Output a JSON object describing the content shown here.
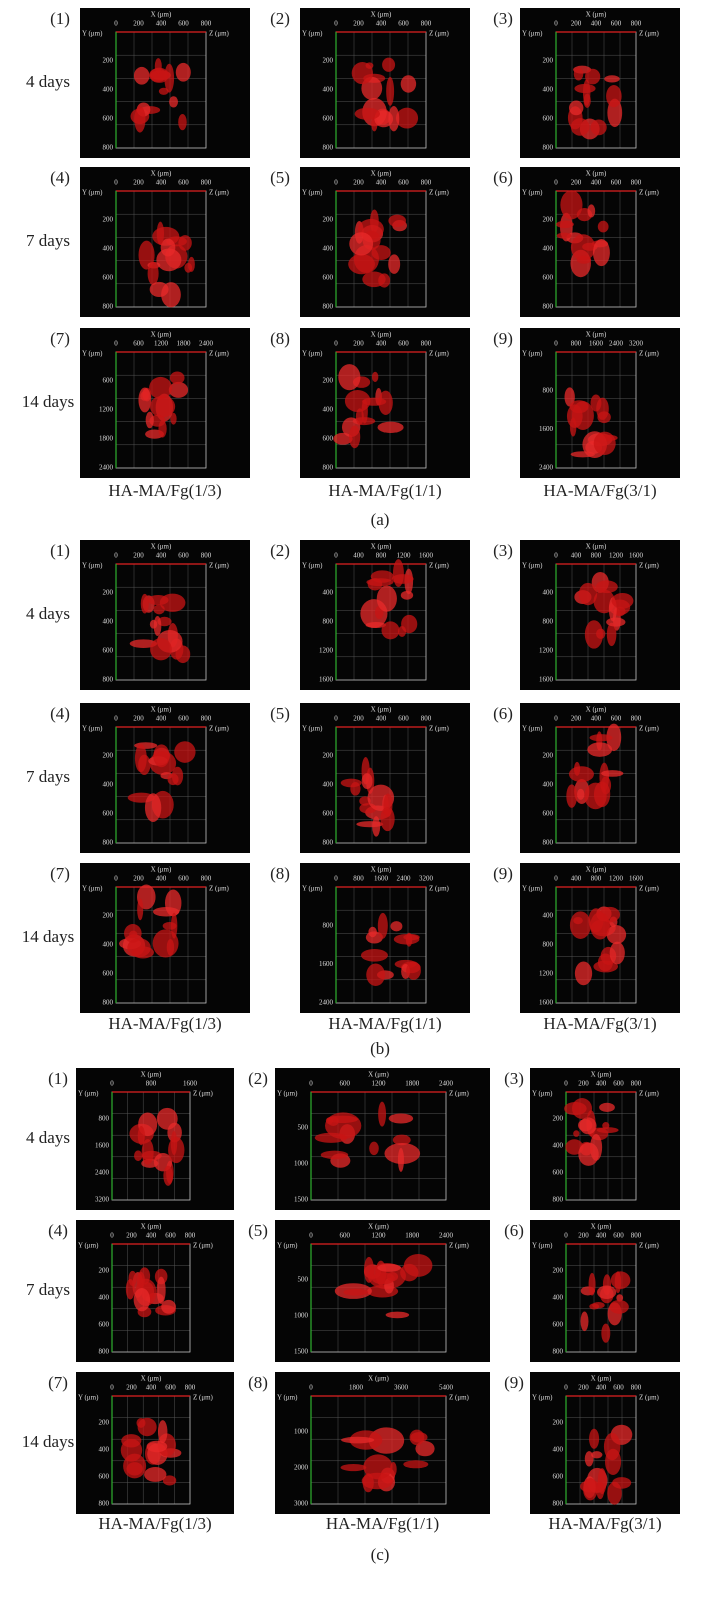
{
  "panels": [
    {
      "label": "(a)",
      "row_labels": [
        "4 days",
        "7 days",
        "14 days"
      ],
      "column_labels": [
        "HA-MA/Fg(1/3)",
        "HA-MA/Fg(1/1)",
        "HA-MA/Fg(3/1)"
      ],
      "images": [
        {
          "number": "(1)",
          "x_axis": "X (μm)",
          "y_axis": "Y (μm)",
          "z_axis": "Z (μm)",
          "xticks": [
            0,
            200,
            400,
            600,
            800
          ],
          "yticks": [
            200,
            400,
            600,
            800
          ]
        },
        {
          "number": "(2)",
          "x_axis": "X (μm)",
          "y_axis": "Y (μm)",
          "z_axis": "Z (μm)",
          "xticks": [
            0,
            200,
            400,
            600,
            800
          ],
          "yticks": [
            200,
            400,
            600,
            800
          ]
        },
        {
          "number": "(3)",
          "x_axis": "X (μm)",
          "y_axis": "Y (μm)",
          "z_axis": "Z (μm)",
          "xticks": [
            0,
            200,
            400,
            600,
            800
          ],
          "yticks": [
            200,
            400,
            600,
            800
          ]
        },
        {
          "number": "(4)",
          "x_axis": "X (μm)",
          "y_axis": "Y (μm)",
          "z_axis": "Z (μm)",
          "xticks": [
            0,
            200,
            400,
            600,
            800
          ],
          "yticks": [
            200,
            400,
            600,
            800
          ]
        },
        {
          "number": "(5)",
          "x_axis": "X (μm)",
          "y_axis": "Y (μm)",
          "z_axis": "Z (μm)",
          "xticks": [
            0,
            200,
            400,
            600,
            800
          ],
          "yticks": [
            200,
            400,
            600,
            800
          ]
        },
        {
          "number": "(6)",
          "x_axis": "X (μm)",
          "y_axis": "Y (μm)",
          "z_axis": "Z (μm)",
          "xticks": [
            0,
            200,
            400,
            600,
            800
          ],
          "yticks": [
            200,
            400,
            600,
            800
          ]
        },
        {
          "number": "(7)",
          "x_axis": "X (μm)",
          "y_axis": "Y (μm)",
          "z_axis": "Z (μm)",
          "xticks": [
            0,
            600,
            1200,
            1800,
            2400
          ],
          "yticks": [
            600,
            1200,
            1800,
            2400
          ]
        },
        {
          "number": "(8)",
          "x_axis": "X (μm)",
          "y_axis": "Y (μm)",
          "z_axis": "Z (μm)",
          "xticks": [
            0,
            200,
            400,
            600,
            800
          ],
          "yticks": [
            200,
            400,
            600,
            800
          ]
        },
        {
          "number": "(9)",
          "x_axis": "X (μm)",
          "y_axis": "Y (μm)",
          "z_axis": "Z (μm)",
          "xticks": [
            0,
            800,
            1600,
            2400,
            3200
          ],
          "yticks": [
            800,
            1600,
            2400
          ]
        }
      ]
    },
    {
      "label": "(b)",
      "row_labels": [
        "4 days",
        "7 days",
        "14 days"
      ],
      "column_labels": [
        "HA-MA/Fg(1/3)",
        "HA-MA/Fg(1/1)",
        "HA-MA/Fg(3/1)"
      ],
      "images": [
        {
          "number": "(1)",
          "x_axis": "X (μm)",
          "y_axis": "Y (μm)",
          "z_axis": "Z (μm)",
          "xticks": [
            0,
            200,
            400,
            600,
            800
          ],
          "yticks": [
            200,
            400,
            600,
            800
          ]
        },
        {
          "number": "(2)",
          "x_axis": "X (μm)",
          "y_axis": "Y (μm)",
          "z_axis": "Z (μm)",
          "xticks": [
            0,
            400,
            800,
            1200,
            1600
          ],
          "yticks": [
            400,
            800,
            1200,
            1600
          ]
        },
        {
          "number": "(3)",
          "x_axis": "X (μm)",
          "y_axis": "Y (μm)",
          "z_axis": "Z (μm)",
          "xticks": [
            0,
            400,
            800,
            1200,
            1600
          ],
          "yticks": [
            400,
            800,
            1200,
            1600
          ]
        },
        {
          "number": "(4)",
          "x_axis": "X (μm)",
          "y_axis": "Y (μm)",
          "z_axis": "Z (μm)",
          "xticks": [
            0,
            200,
            400,
            600,
            800
          ],
          "yticks": [
            200,
            400,
            600,
            800
          ]
        },
        {
          "number": "(5)",
          "x_axis": "X (μm)",
          "y_axis": "Y (μm)",
          "z_axis": "Z (μm)",
          "xticks": [
            0,
            200,
            400,
            600,
            800
          ],
          "yticks": [
            200,
            400,
            600,
            800
          ]
        },
        {
          "number": "(6)",
          "x_axis": "X (μm)",
          "y_axis": "Y (μm)",
          "z_axis": "Z (μm)",
          "xticks": [
            0,
            200,
            400,
            600,
            800
          ],
          "yticks": [
            200,
            400,
            600,
            800
          ]
        },
        {
          "number": "(7)",
          "x_axis": "X (μm)",
          "y_axis": "Y (μm)",
          "z_axis": "Z (μm)",
          "xticks": [
            0,
            200,
            400,
            600,
            800
          ],
          "yticks": [
            200,
            400,
            600,
            800
          ]
        },
        {
          "number": "(8)",
          "x_axis": "X (μm)",
          "y_axis": "Y (μm)",
          "z_axis": "Z (μm)",
          "xticks": [
            0,
            800,
            1600,
            2400,
            3200
          ],
          "yticks": [
            800,
            1600,
            2400
          ]
        },
        {
          "number": "(9)",
          "x_axis": "X (μm)",
          "y_axis": "Y (μm)",
          "z_axis": "Z (μm)",
          "xticks": [
            0,
            400,
            800,
            1200,
            1600
          ],
          "yticks": [
            400,
            800,
            1200,
            1600
          ]
        }
      ]
    },
    {
      "label": "(c)",
      "row_labels": [
        "4 days",
        "7 days",
        "14 days"
      ],
      "column_labels": [
        "HA-MA/Fg(1/3)",
        "HA-MA/Fg(1/1)",
        "HA-MA/Fg(3/1)"
      ],
      "images": [
        {
          "number": "(1)",
          "x_axis": "X (μm)",
          "y_axis": "Y (μm)",
          "z_axis": "Z (μm)",
          "xticks": [
            0,
            800,
            1600
          ],
          "yticks": [
            800,
            1600,
            2400,
            3200
          ]
        },
        {
          "number": "(2)",
          "x_axis": "X (μm)",
          "y_axis": "Y (μm)",
          "z_axis": "Z (μm)",
          "xticks": [
            0,
            600,
            1200,
            1800,
            2400
          ],
          "yticks": [
            500,
            1000,
            1500
          ]
        },
        {
          "number": "(3)",
          "x_axis": "X (μm)",
          "y_axis": "Y (μm)",
          "z_axis": "Z (μm)",
          "xticks": [
            0,
            200,
            400,
            600,
            800
          ],
          "yticks": [
            200,
            400,
            600,
            800
          ]
        },
        {
          "number": "(4)",
          "x_axis": "X (μm)",
          "y_axis": "Y (μm)",
          "z_axis": "Z (μm)",
          "xticks": [
            0,
            200,
            400,
            600,
            800
          ],
          "yticks": [
            200,
            400,
            600,
            800
          ]
        },
        {
          "number": "(5)",
          "x_axis": "X (μm)",
          "y_axis": "Y (μm)",
          "z_axis": "Z (μm)",
          "xticks": [
            0,
            600,
            1200,
            1800,
            2400
          ],
          "yticks": [
            500,
            1000,
            1500
          ]
        },
        {
          "number": "(6)",
          "x_axis": "X (μm)",
          "y_axis": "Y (μm)",
          "z_axis": "Z (μm)",
          "xticks": [
            0,
            200,
            400,
            600,
            800
          ],
          "yticks": [
            200,
            400,
            600,
            800
          ]
        },
        {
          "number": "(7)",
          "x_axis": "X (μm)",
          "y_axis": "Y (μm)",
          "z_axis": "Z (μm)",
          "xticks": [
            0,
            200,
            400,
            600,
            800
          ],
          "yticks": [
            200,
            400,
            600,
            800
          ]
        },
        {
          "number": "(8)",
          "x_axis": "X (μm)",
          "y_axis": "Y (μm)",
          "z_axis": "Z (μm)",
          "xticks": [
            0,
            1800,
            3600,
            5400
          ],
          "yticks": [
            1000,
            2000,
            3000
          ]
        },
        {
          "number": "(9)",
          "x_axis": "X (μm)",
          "y_axis": "Y (μm)",
          "z_axis": "Z (μm)",
          "xticks": [
            0,
            200,
            400,
            600,
            800
          ],
          "yticks": [
            200,
            400,
            600,
            800
          ]
        }
      ]
    }
  ]
}
